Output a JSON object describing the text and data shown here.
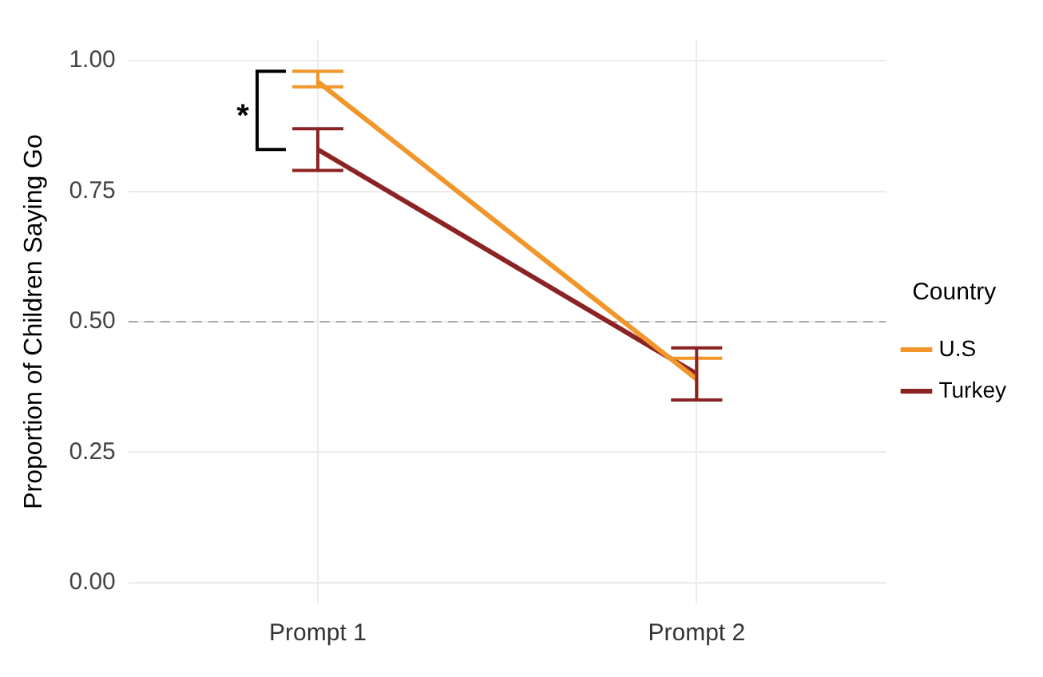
{
  "chart_data": {
    "type": "line",
    "ylabel": "Proportion of Children Saying Go",
    "legend_title": "Country",
    "legend": "right",
    "grid": true,
    "marker": "none",
    "line_style": "solid",
    "categories": [
      "Prompt 1",
      "Prompt 2"
    ],
    "series": [
      {
        "name": "U.S",
        "color": "#f0962a",
        "values": [
          0.96,
          0.39
        ],
        "errors": [
          [
            0.95,
            0.98
          ],
          [
            0.35,
            0.43
          ]
        ]
      },
      {
        "name": "Turkey",
        "color": "#8b2323",
        "values": [
          0.83,
          0.4
        ],
        "errors": [
          [
            0.79,
            0.87
          ],
          [
            0.35,
            0.45
          ]
        ]
      }
    ],
    "ylim": [
      -0.04,
      1.04
    ],
    "yticks": [
      {
        "value": 0,
        "label": "0.00"
      },
      {
        "value": 0.25,
        "label": "0.25"
      },
      {
        "value": 0.5,
        "label": "0.50"
      },
      {
        "value": 0.75,
        "label": "0.75"
      },
      {
        "value": 1,
        "label": "1.00"
      }
    ],
    "ref_lines": [
      {
        "axis": "y",
        "value": 0.5,
        "color": "#aaaaaa",
        "line_style": "dashed"
      }
    ],
    "annotations": [
      "*"
    ]
  }
}
